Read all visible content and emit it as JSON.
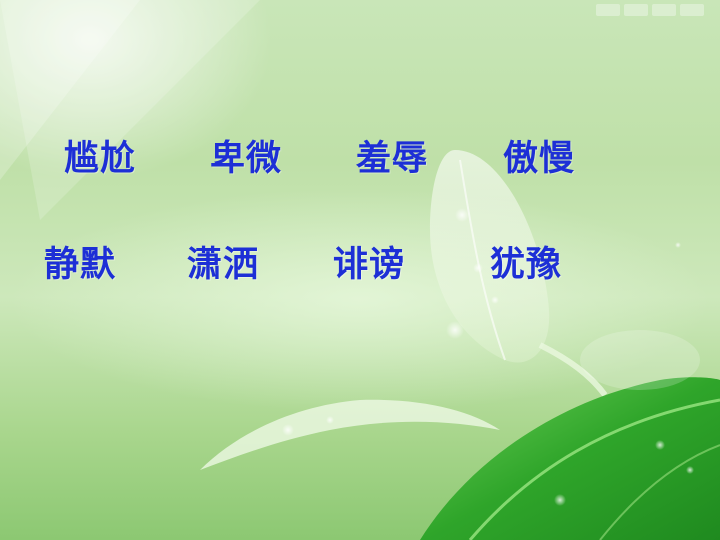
{
  "row1": [
    "尴尬",
    "卑微",
    "羞辱",
    "傲慢"
  ],
  "row2": [
    "静默",
    "潇洒",
    "诽谤",
    "犹豫"
  ],
  "colors": {
    "text": "#1d2fd6",
    "leaf_dark": "#2f9e2a",
    "background": "#c4e4ae"
  }
}
